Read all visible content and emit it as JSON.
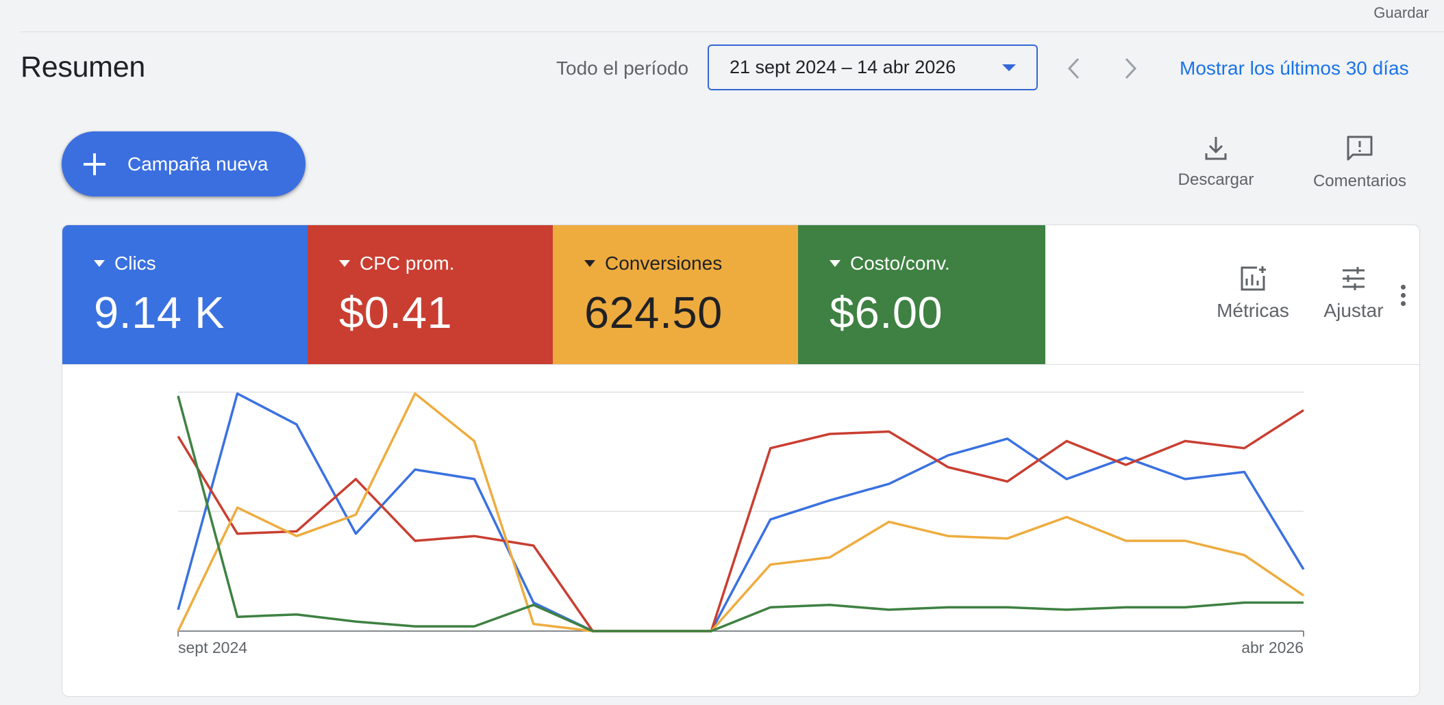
{
  "header": {
    "save_label": "Guardar",
    "title": "Resumen",
    "period_label": "Todo el período",
    "date_range": "21 sept 2024 – 14 abr 2026",
    "show_last_30": "Mostrar los últimos 30 días"
  },
  "actions": {
    "new_campaign": "Campaña nueva",
    "download": "Descargar",
    "comments": "Comentarios"
  },
  "scorecards": [
    {
      "label": "Clics",
      "value": "9.14 K",
      "color": "#3a71e0"
    },
    {
      "label": "CPC prom.",
      "value": "$0.41",
      "color": "#c93e31"
    },
    {
      "label": "Conversiones",
      "value": "624.50",
      "color": "#eeac3f"
    },
    {
      "label": "Costo/conv.",
      "value": "$6.00",
      "color": "#3e8142"
    }
  ],
  "chart_tools": {
    "metrics": "Métricas",
    "adjust": "Ajustar"
  },
  "chart_data": {
    "type": "line",
    "x_start_label": "sept 2024",
    "x_end_label": "abr 2026",
    "grid": true,
    "ylim": [
      0,
      100
    ],
    "points": 20,
    "series": [
      {
        "color": "#3a71e0",
        "values": [
          9,
          100,
          87,
          41,
          68,
          64,
          12,
          0,
          0,
          0,
          47,
          55,
          62,
          74,
          81,
          64,
          73,
          64,
          67,
          26
        ]
      },
      {
        "color": "#c93e31",
        "values": [
          82,
          41,
          42,
          64,
          38,
          40,
          36,
          0,
          0,
          0,
          77,
          83,
          84,
          69,
          63,
          80,
          70,
          80,
          77,
          93
        ]
      },
      {
        "color": "#eeac3f",
        "values": [
          0,
          52,
          40,
          49,
          100,
          80,
          3,
          0,
          0,
          0,
          28,
          31,
          46,
          40,
          39,
          48,
          38,
          38,
          32,
          15
        ]
      },
      {
        "color": "#3e8142",
        "values": [
          99,
          6,
          7,
          4,
          2,
          2,
          11,
          0,
          0,
          0,
          10,
          11,
          9,
          10,
          10,
          9,
          10,
          10,
          12,
          12
        ]
      }
    ]
  }
}
